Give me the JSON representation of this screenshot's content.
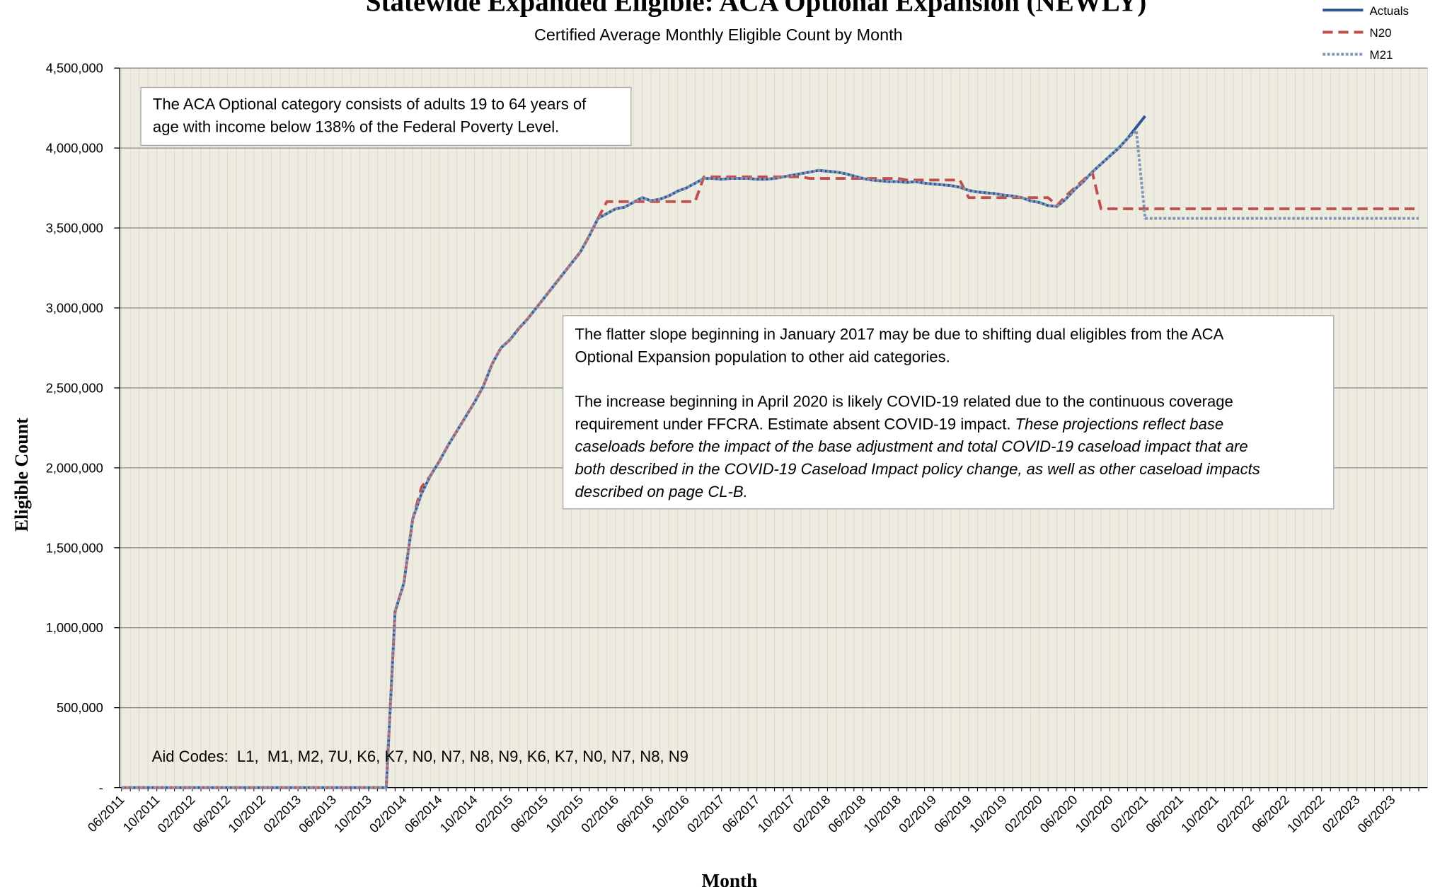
{
  "chart_data": {
    "type": "line",
    "title": "Statewide Expanded Eligible: ACA Optional Expansion (NEWLY)",
    "subtitle": "Certified Average Monthly Eligible Count by Month",
    "x_label": "Month",
    "y_label": "Eligible Count",
    "categories": [
      "06/2011",
      null,
      null,
      null,
      "10/2011",
      null,
      null,
      null,
      "02/2012",
      null,
      null,
      null,
      "06/2012",
      null,
      null,
      null,
      "10/2012",
      null,
      null,
      null,
      "02/2013",
      null,
      null,
      null,
      "06/2013",
      null,
      null,
      null,
      "10/2013",
      null,
      null,
      null,
      "02/2014",
      null,
      null,
      null,
      "06/2014",
      null,
      null,
      null,
      "10/2014",
      null,
      null,
      null,
      "02/2015",
      null,
      null,
      null,
      "06/2015",
      null,
      null,
      null,
      "10/2015",
      null,
      null,
      null,
      "02/2016",
      null,
      null,
      null,
      "06/2016",
      null,
      null,
      null,
      "10/2016",
      null,
      null,
      null,
      "02/2017",
      null,
      null,
      null,
      "06/2017",
      null,
      null,
      null,
      "10/2017",
      null,
      null,
      null,
      "02/2018",
      null,
      null,
      null,
      "06/2018",
      null,
      null,
      null,
      "10/2018",
      null,
      null,
      null,
      "02/2019",
      null,
      null,
      null,
      "06/2019",
      null,
      null,
      null,
      "10/2019",
      null,
      null,
      null,
      "02/2020",
      null,
      null,
      null,
      "06/2020",
      null,
      null,
      null,
      "10/2020",
      null,
      null,
      null,
      "02/2021",
      null,
      null,
      null,
      "06/2021",
      null,
      null,
      null,
      "10/2021",
      null,
      null,
      null,
      "02/2022",
      null,
      null,
      null,
      "06/2022",
      null,
      null,
      null,
      "10/2022",
      null,
      null,
      null,
      "02/2023",
      null,
      null,
      null,
      "06/2023",
      null,
      null,
      null
    ],
    "series": [
      {
        "name": "Actuals",
        "color": "#2e5593",
        "dash": "solid",
        "values": [
          0,
          0,
          0,
          0,
          0,
          0,
          0,
          0,
          0,
          0,
          0,
          0,
          0,
          0,
          0,
          0,
          0,
          0,
          0,
          0,
          0,
          0,
          0,
          0,
          0,
          0,
          0,
          0,
          0,
          0,
          0,
          1100000,
          1280000,
          1680000,
          1840000,
          1950000,
          2040000,
          2140000,
          2230000,
          2320000,
          2410000,
          2510000,
          2650000,
          2750000,
          2800000,
          2870000,
          2930000,
          3000000,
          3070000,
          3140000,
          3210000,
          3280000,
          3350000,
          3450000,
          3560000,
          3590000,
          3620000,
          3630000,
          3660000,
          3690000,
          3670000,
          3680000,
          3700000,
          3730000,
          3750000,
          3780000,
          3810000,
          3810000,
          3805000,
          3810000,
          3810000,
          3810000,
          3805000,
          3805000,
          3810000,
          3820000,
          3830000,
          3840000,
          3850000,
          3860000,
          3855000,
          3850000,
          3840000,
          3825000,
          3810000,
          3800000,
          3795000,
          3790000,
          3790000,
          3785000,
          3790000,
          3780000,
          3775000,
          3770000,
          3765000,
          3755000,
          3735000,
          3725000,
          3720000,
          3715000,
          3705000,
          3700000,
          3690000,
          3670000,
          3660000,
          3640000,
          3635000,
          3680000,
          3740000,
          3790000,
          3850000,
          3900000,
          3950000,
          4000000,
          4060000,
          4130000,
          4200000,
          null,
          null,
          null,
          null,
          null,
          null,
          null,
          null,
          null,
          null,
          null,
          null,
          null,
          null,
          null,
          null,
          null,
          null,
          null,
          null,
          null,
          null,
          null,
          null,
          null,
          null,
          null,
          null,
          null,
          null,
          null
        ]
      },
      {
        "name": "N20",
        "color": "#c0504d",
        "dash": "dashed",
        "values": [
          0,
          0,
          0,
          0,
          0,
          0,
          0,
          0,
          0,
          0,
          0,
          0,
          0,
          0,
          0,
          0,
          0,
          0,
          0,
          0,
          0,
          0,
          0,
          0,
          0,
          0,
          0,
          0,
          0,
          0,
          0,
          1100000,
          1280000,
          1680000,
          1880000,
          1950000,
          2040000,
          2140000,
          2230000,
          2320000,
          2410000,
          2510000,
          2650000,
          2750000,
          2800000,
          2870000,
          2930000,
          3000000,
          3070000,
          3140000,
          3210000,
          3280000,
          3350000,
          3450000,
          3560000,
          3665000,
          3665000,
          3665000,
          3665000,
          3665000,
          3665000,
          3665000,
          3665000,
          3665000,
          3665000,
          3665000,
          3820000,
          3820000,
          3820000,
          3820000,
          3820000,
          3820000,
          3820000,
          3820000,
          3820000,
          3820000,
          3820000,
          3820000,
          3810000,
          3810000,
          3810000,
          3810000,
          3810000,
          3810000,
          3810000,
          3810000,
          3810000,
          3810000,
          3810000,
          3800000,
          3800000,
          3800000,
          3800000,
          3800000,
          3800000,
          3800000,
          3690000,
          3690000,
          3690000,
          3690000,
          3690000,
          3690000,
          3690000,
          3690000,
          3690000,
          3690000,
          3640000,
          3700000,
          3750000,
          3800000,
          3850000,
          3620000,
          3620000,
          3620000,
          3620000,
          3620000,
          3620000,
          3620000,
          3620000,
          3620000,
          3620000,
          3620000,
          3620000,
          3620000,
          3620000,
          3620000,
          3620000,
          3620000,
          3620000,
          3620000,
          3620000,
          3620000,
          3620000,
          3620000,
          3620000,
          3620000,
          3620000,
          3620000,
          3620000,
          3620000,
          3620000,
          3620000,
          3620000,
          3620000,
          3620000,
          3620000,
          3620000,
          3620000
        ]
      },
      {
        "name": "M21",
        "color": "#7f96b8",
        "dash": "dotted",
        "values": [
          0,
          0,
          0,
          0,
          0,
          0,
          0,
          0,
          0,
          0,
          0,
          0,
          0,
          0,
          0,
          0,
          0,
          0,
          0,
          0,
          0,
          0,
          0,
          0,
          0,
          0,
          0,
          0,
          0,
          0,
          0,
          1100000,
          1280000,
          1680000,
          1840000,
          1950000,
          2040000,
          2140000,
          2230000,
          2320000,
          2410000,
          2510000,
          2650000,
          2750000,
          2800000,
          2870000,
          2930000,
          3000000,
          3070000,
          3140000,
          3210000,
          3280000,
          3350000,
          3450000,
          3560000,
          3590000,
          3620000,
          3630000,
          3660000,
          3690000,
          3670000,
          3680000,
          3700000,
          3730000,
          3750000,
          3780000,
          3810000,
          3810000,
          3805000,
          3810000,
          3810000,
          3810000,
          3805000,
          3805000,
          3810000,
          3820000,
          3830000,
          3840000,
          3850000,
          3860000,
          3855000,
          3850000,
          3840000,
          3825000,
          3810000,
          3800000,
          3795000,
          3790000,
          3790000,
          3785000,
          3790000,
          3780000,
          3775000,
          3770000,
          3765000,
          3755000,
          3735000,
          3725000,
          3720000,
          3715000,
          3705000,
          3700000,
          3690000,
          3670000,
          3660000,
          3640000,
          3635000,
          3680000,
          3740000,
          3790000,
          3850000,
          3900000,
          3950000,
          4000000,
          4060000,
          4110000,
          3560000,
          3560000,
          3560000,
          3560000,
          3560000,
          3560000,
          3560000,
          3560000,
          3560000,
          3560000,
          3560000,
          3560000,
          3560000,
          3560000,
          3560000,
          3560000,
          3560000,
          3560000,
          3560000,
          3560000,
          3560000,
          3560000,
          3560000,
          3560000,
          3560000,
          3560000,
          3560000,
          3560000,
          3560000,
          3560000,
          3560000,
          3560000
        ]
      }
    ],
    "ylim": [
      0,
      4500000
    ],
    "yticks": [
      {
        "value": 0,
        "label": "-"
      },
      {
        "value": 500000,
        "label": "500,000"
      },
      {
        "value": 1000000,
        "label": "1,000,000"
      },
      {
        "value": 1500000,
        "label": "1,500,000"
      },
      {
        "value": 2000000,
        "label": "2,000,000"
      },
      {
        "value": 2500000,
        "label": "2,500,000"
      },
      {
        "value": 3000000,
        "label": "3,000,000"
      },
      {
        "value": 3500000,
        "label": "3,500,000"
      },
      {
        "value": 4000000,
        "label": "4,000,000"
      },
      {
        "value": 4500000,
        "label": "4,500,000"
      }
    ],
    "grid": true,
    "legend": "top-right",
    "notes": [
      {
        "paragraphs": [
          [
            [
              {
                "text": "The ACA Optional category consists of adults 19 to 64 years of"
              }
            ],
            [
              {
                "text": "age with income below 138% of the Federal Poverty Level."
              }
            ]
          ]
        ]
      },
      {
        "paragraphs": [
          [
            [
              {
                "text": "The flatter slope beginning in January 2017 may be due to shifting dual eligibles from the ACA"
              }
            ],
            [
              {
                "text": "Optional Expansion population to other aid categories."
              }
            ]
          ],
          [
            [
              {
                "text": "The increase beginning in April 2020 is likely COVID-19 related due to the continuous coverage"
              }
            ],
            [
              {
                "text": "requirement under FFCRA. Estimate absent COVID-19 impact. "
              },
              {
                "text": "These projections reflect base",
                "italic": true
              }
            ],
            [
              {
                "text": "caseloads before the impact of the base adjustment and total COVID-19 caseload impact that are",
                "italic": true
              }
            ],
            [
              {
                "text": "both described in the COVID-19 Caseload Impact policy change, as well as other caseload impacts",
                "italic": true
              }
            ],
            [
              {
                "text": "described on page CL-B.",
                "italic": true
              }
            ]
          ]
        ]
      },
      {
        "paragraphs": [
          [
            [
              {
                "text": "Aid Codes:  L1,  M1, M2, 7U, K6, K7, N0, N7, N8, N9, K6, K7, N0, N7, N8, N9"
              }
            ]
          ]
        ]
      }
    ]
  }
}
